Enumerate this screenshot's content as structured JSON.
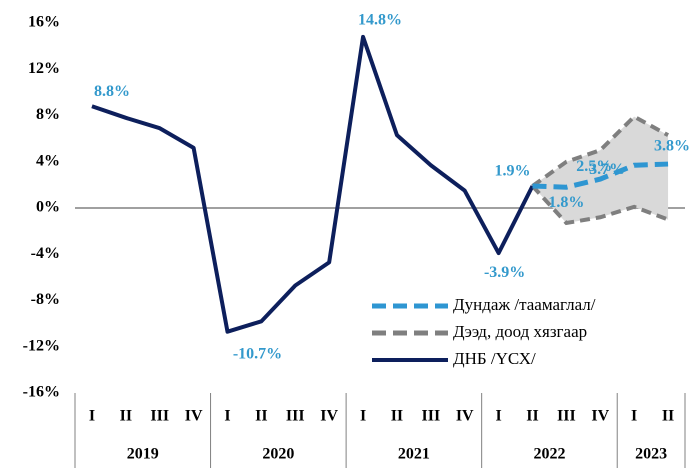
{
  "chart_data": {
    "type": "line",
    "groups": [
      {
        "label": "2019",
        "categories": [
          "I",
          "II",
          "III",
          "IV"
        ]
      },
      {
        "label": "2020",
        "categories": [
          "I",
          "II",
          "III",
          "IV"
        ]
      },
      {
        "label": "2021",
        "categories": [
          "I",
          "II",
          "III",
          "IV"
        ]
      },
      {
        "label": "2022",
        "categories": [
          "I",
          "II",
          "III",
          "IV"
        ]
      },
      {
        "label": "2023",
        "categories": [
          "I",
          "II"
        ]
      }
    ],
    "series": [
      {
        "name": "Дундаж /таамаглал/",
        "color": "#2e96d2",
        "style": "dashed",
        "values": [
          null,
          null,
          null,
          null,
          null,
          null,
          null,
          null,
          null,
          null,
          null,
          null,
          null,
          1.9,
          1.8,
          2.5,
          3.7,
          3.8
        ],
        "value_labels": [
          null,
          null,
          null,
          null,
          null,
          null,
          null,
          null,
          null,
          null,
          null,
          null,
          null,
          null,
          "1.8%",
          "2.5%",
          "3.7%",
          "3.8%"
        ]
      },
      {
        "name": "Дээд, доод хязгаар",
        "color": "#7f7f7f",
        "style": "dashed",
        "fill": "#d9d9d9",
        "upper": [
          null,
          null,
          null,
          null,
          null,
          null,
          null,
          null,
          null,
          null,
          null,
          null,
          null,
          1.9,
          4.0,
          5.0,
          7.9,
          6.3
        ],
        "lower": [
          null,
          null,
          null,
          null,
          null,
          null,
          null,
          null,
          null,
          null,
          null,
          null,
          null,
          1.9,
          -1.3,
          -0.8,
          0.1,
          -1.0
        ]
      },
      {
        "name": "ДНБ /ҮСХ/",
        "color": "#0d1f5c",
        "style": "solid",
        "values": [
          8.8,
          7.8,
          6.9,
          5.2,
          -10.7,
          -9.8,
          -6.7,
          -4.7,
          14.8,
          6.3,
          3.7,
          1.5,
          -3.9,
          1.9,
          null,
          null,
          null,
          null
        ],
        "value_labels": [
          "8.8%",
          null,
          null,
          null,
          "-10.7%",
          null,
          null,
          null,
          "14.8%",
          null,
          null,
          null,
          "-3.9%",
          "1.9%",
          null,
          null,
          null,
          null
        ]
      }
    ],
    "ylim": [
      -16,
      16
    ],
    "yticks": [
      {
        "value": -16,
        "label": "-16%"
      },
      {
        "value": -12,
        "label": "-12%"
      },
      {
        "value": -8,
        "label": "-8%"
      },
      {
        "value": -4,
        "label": "-4%"
      },
      {
        "value": 0,
        "label": "0%"
      },
      {
        "value": 4,
        "label": "4%"
      },
      {
        "value": 8,
        "label": "8%"
      },
      {
        "value": 12,
        "label": "12%"
      },
      {
        "value": 16,
        "label": "16%"
      }
    ],
    "grid": false,
    "label_color": "#3399cc"
  }
}
